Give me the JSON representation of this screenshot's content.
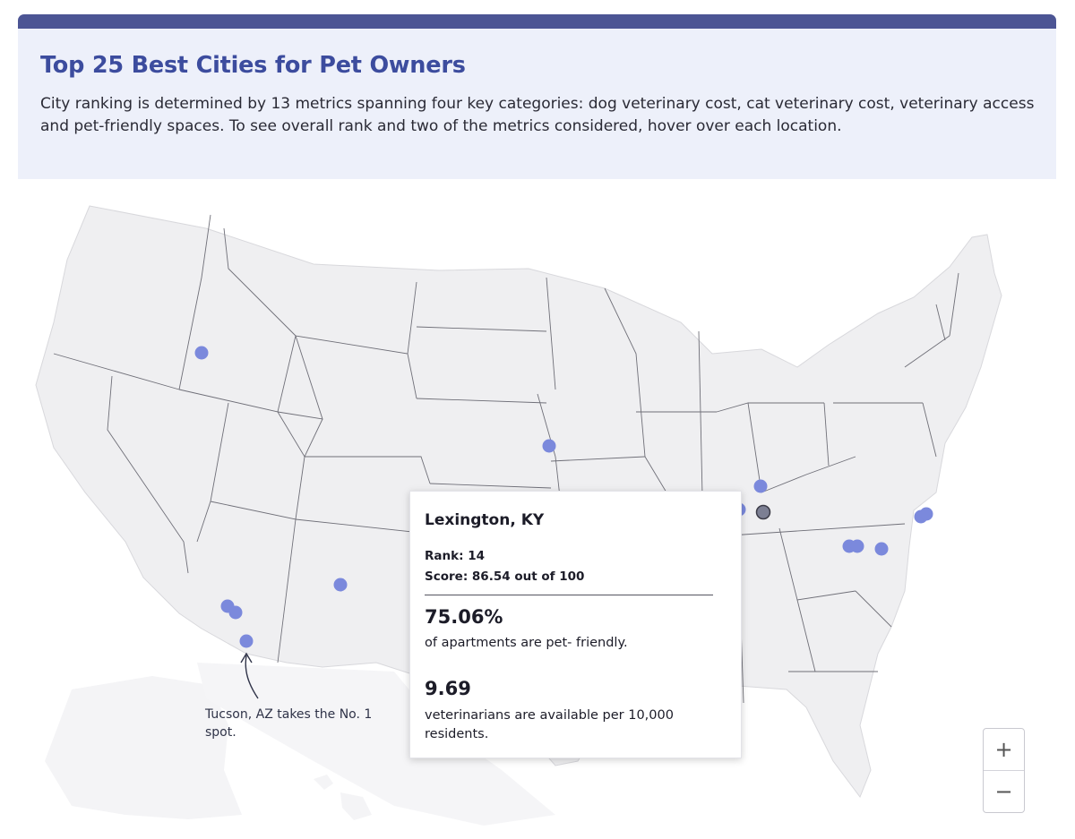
{
  "header": {
    "title": "Top 25 Best Cities for Pet Owners",
    "subtitle": "City ranking is determined by 13 metrics spanning four key categories: dog veterinary cost, cat veterinary cost, veterinary access and pet-friendly spaces. To see overall rank and two of the metrics considered, hover over each location."
  },
  "colors": {
    "accent_bar": "#4c5594",
    "title": "#3c4c9e",
    "header_bg": "#edf0fa",
    "land": "#efeff1",
    "state_border": "#6f6f78",
    "marker": "#7b89dc",
    "marker_selected": "#7c7f93"
  },
  "map": {
    "annotation": "Tucson, AZ takes the No. 1 spot.",
    "markers": [
      {
        "label": "Idaho city"
      },
      {
        "label": "Iowa city"
      },
      {
        "label": "Arizona city 1"
      },
      {
        "label": "Arizona city 2"
      },
      {
        "label": "Tucson, AZ"
      },
      {
        "label": "New Mexico city"
      },
      {
        "label": "Ohio/Kentucky city"
      },
      {
        "label": "Kentucky city west"
      },
      {
        "label": "Lexington, KY",
        "selected": true
      },
      {
        "label": "Virginia city 1"
      },
      {
        "label": "Virginia city 2"
      },
      {
        "label": "North Carolina city 1"
      },
      {
        "label": "North Carolina city 2"
      },
      {
        "label": "North Carolina city 3"
      }
    ]
  },
  "tooltip": {
    "city": "Lexington, KY",
    "rank": "Rank: 14",
    "score": "Score: 86.54 out of 100",
    "metric1_value": "75.06%",
    "metric1_desc": "of apartments are pet- friendly.",
    "metric2_value": "9.69",
    "metric2_desc": "veterinarians are available per 10,000 residents."
  },
  "zoom": {
    "in_label": "+",
    "out_label": "−"
  }
}
